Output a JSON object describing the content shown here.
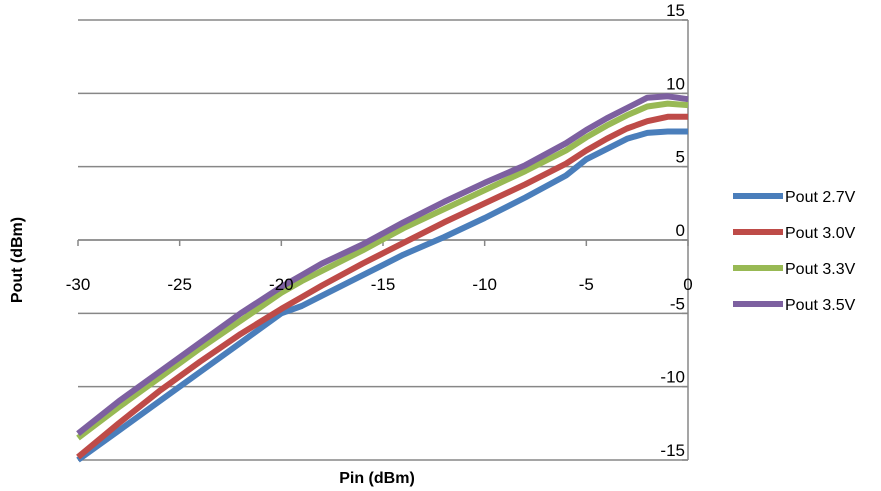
{
  "chart_data": {
    "type": "line",
    "title": "",
    "xlabel": "Pin (dBm)",
    "ylabel": "Pout (dBm)",
    "xlim": [
      -30,
      0
    ],
    "ylim": [
      -15,
      15
    ],
    "x_ticks": [
      "-30",
      "-25",
      "-20",
      "-15",
      "-10",
      "-5",
      "0"
    ],
    "y_ticks": [
      "15",
      "10",
      "5",
      "0",
      "-5",
      "-10",
      "-15"
    ],
    "grid": "horizontal",
    "legend_position": "right",
    "x": [
      -30,
      -28,
      -26,
      -24,
      -22,
      -20,
      -19,
      -18,
      -16,
      -14,
      -12,
      -10,
      -8,
      -6,
      -5,
      -4,
      -3,
      -2,
      -1,
      0
    ],
    "series": [
      {
        "name": "Pout 2.7V",
        "color": "#4a7ebb",
        "values": [
          -15,
          -13,
          -11,
          -9,
          -7,
          -5,
          -4.5,
          -3.8,
          -2.4,
          -1,
          0.2,
          1.5,
          2.9,
          4.4,
          5.5,
          6.2,
          6.9,
          7.3,
          7.4,
          7.4
        ]
      },
      {
        "name": "Pout 3.0V",
        "color": "#be4b48",
        "values": [
          -14.8,
          -12.5,
          -10.3,
          -8.3,
          -6.4,
          -4.7,
          -3.9,
          -3.1,
          -1.6,
          -0.2,
          1.2,
          2.5,
          3.8,
          5.2,
          6.1,
          6.9,
          7.6,
          8.1,
          8.4,
          8.4
        ]
      },
      {
        "name": "Pout 3.3V",
        "color": "#98b954",
        "values": [
          -13.5,
          -11.4,
          -9.4,
          -7.4,
          -5.5,
          -3.6,
          -2.8,
          -2.1,
          -0.7,
          0.8,
          2.1,
          3.4,
          4.7,
          6.1,
          7.0,
          7.8,
          8.5,
          9.1,
          9.3,
          9.2
        ]
      },
      {
        "name": "Pout 3.5V",
        "color": "#7d60a0",
        "values": [
          -13.2,
          -11.0,
          -9.0,
          -7.0,
          -5.0,
          -3.2,
          -2.4,
          -1.6,
          -0.3,
          1.2,
          2.6,
          3.9,
          5.1,
          6.6,
          7.5,
          8.3,
          9.0,
          9.7,
          9.8,
          9.6
        ]
      }
    ]
  }
}
